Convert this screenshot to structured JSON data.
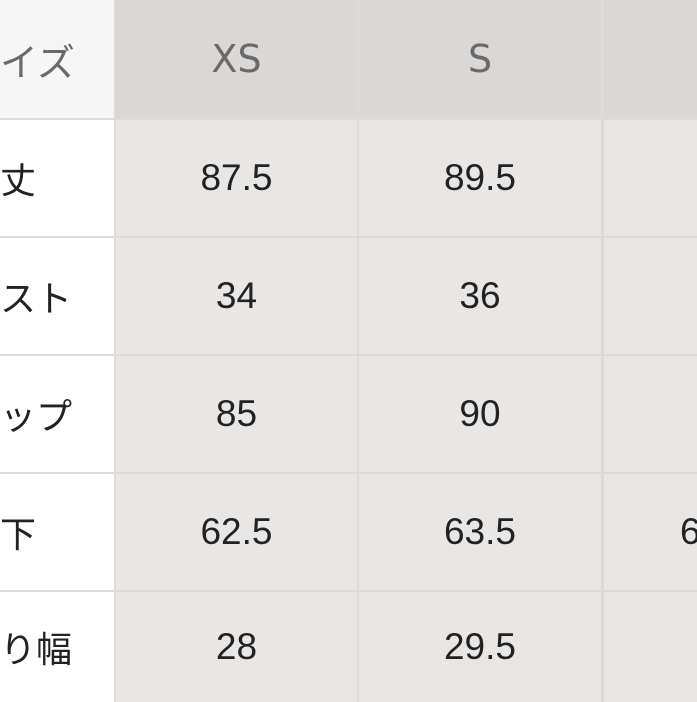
{
  "header": {
    "label": "イズ",
    "sizes": [
      "XS",
      "S",
      ""
    ]
  },
  "rows": [
    {
      "label": "丈",
      "values": [
        "87.5",
        "89.5",
        ""
      ]
    },
    {
      "label": "スト",
      "values": [
        "34",
        "36",
        ""
      ]
    },
    {
      "label": "ップ",
      "values": [
        "85",
        "90",
        ""
      ]
    },
    {
      "label": "下",
      "values": [
        "62.5",
        "63.5",
        "6"
      ]
    },
    {
      "label": "り幅",
      "values": [
        "28",
        "29.5",
        ""
      ]
    }
  ]
}
